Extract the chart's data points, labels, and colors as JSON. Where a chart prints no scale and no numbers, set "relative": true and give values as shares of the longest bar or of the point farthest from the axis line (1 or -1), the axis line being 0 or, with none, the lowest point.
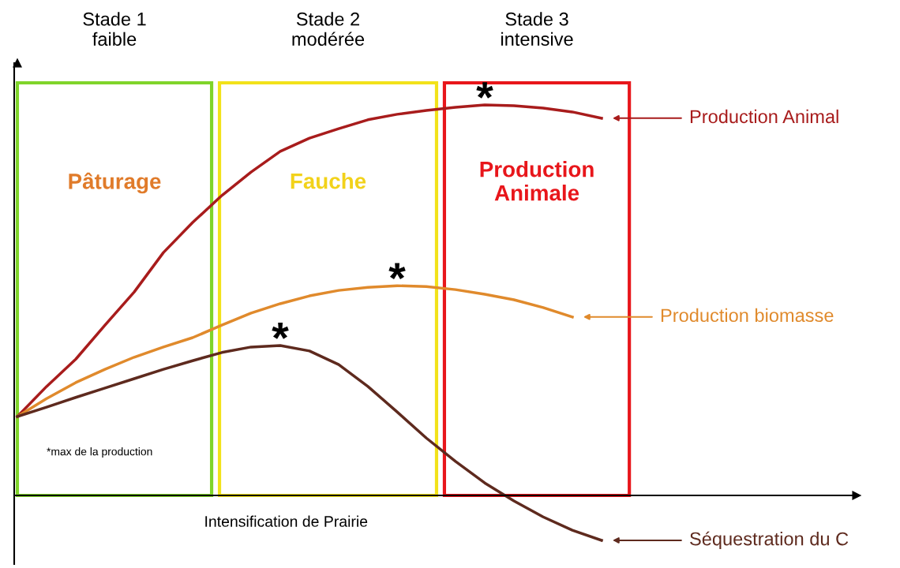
{
  "chart_data": {
    "type": "line",
    "relative": true,
    "xlabel": "Intensification de Prairie",
    "categories": [
      null,
      null,
      null,
      null,
      null,
      null,
      null,
      null,
      null,
      null,
      null,
      null,
      null,
      null,
      null,
      null,
      null,
      null,
      null,
      null,
      null
    ],
    "series": [
      {
        "name": "Production Animal",
        "color": "#a81c1c",
        "values": [
          0.202,
          0.279,
          0.349,
          0.436,
          0.521,
          0.622,
          0.699,
          0.768,
          0.828,
          0.881,
          0.915,
          0.939,
          0.962,
          0.976,
          0.986,
          0.994,
          1.0,
          0.998,
          0.992,
          0.982,
          0.966
        ]
      },
      {
        "name": "Production biomasse",
        "color": "#e08a2c",
        "values": [
          0.202,
          0.248,
          0.289,
          0.323,
          0.354,
          0.38,
          0.404,
          0.436,
          0.467,
          0.491,
          0.511,
          0.525,
          0.533,
          0.537,
          0.535,
          0.527,
          0.515,
          0.501,
          0.481,
          0.457,
          null
        ]
      },
      {
        "name": "Séquestration du C",
        "color": "#5e2a1e",
        "values": [
          0.202,
          0.226,
          0.251,
          0.275,
          0.299,
          0.323,
          0.345,
          0.366,
          0.38,
          0.384,
          0.37,
          0.335,
          0.279,
          0.214,
          0.147,
          0.087,
          0.032,
          -0.014,
          -0.055,
          -0.089,
          -0.115
        ]
      }
    ],
    "annotations": [
      "Stade 1\nfaible",
      "Stade 2\nmodérée",
      "Stade 3\nintensive",
      "Pâturage",
      "Fauche",
      "Production\nAnimale",
      "*max de la production",
      "*",
      "*",
      "*"
    ],
    "legend": "right"
  }
}
